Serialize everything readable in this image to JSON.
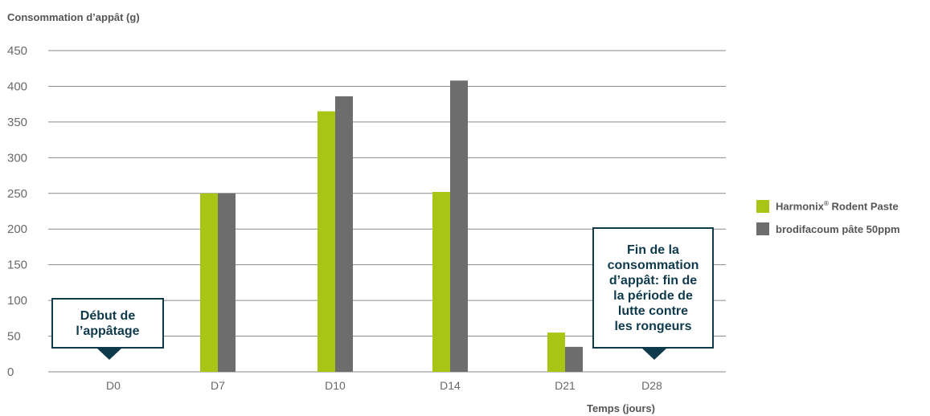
{
  "chart_data": {
    "type": "bar",
    "ylabel": "Consommation d’appât (g)",
    "xlabel": "Temps (jours)",
    "ylim": [
      0,
      450
    ],
    "yticks": [
      0,
      50,
      100,
      150,
      200,
      250,
      300,
      350,
      400,
      450
    ],
    "categories": [
      "D0",
      "D7",
      "D10",
      "D14",
      "D21",
      "D28"
    ],
    "series": [
      {
        "name": "Harmonix® Rodent Paste",
        "legend_name": "Harmonix",
        "legend_sup": "®",
        "legend_rest": " Rodent Paste",
        "color": "#a8c515",
        "values": [
          0,
          250,
          365,
          252,
          55,
          0
        ]
      },
      {
        "name": "brodifacoum pâte 50ppm",
        "color": "#6d6d6d",
        "values": [
          0,
          250,
          386,
          408,
          35,
          0
        ]
      }
    ],
    "grid": true,
    "legend_position": "right",
    "annotations": [
      {
        "text": "Début de\nl’appâtage",
        "category": "D0"
      },
      {
        "text": "Fin de la\nconsommation\nd’appât: fin de\nla période de\nlutte contre\nles rongeurs",
        "category": "D28"
      }
    ]
  }
}
